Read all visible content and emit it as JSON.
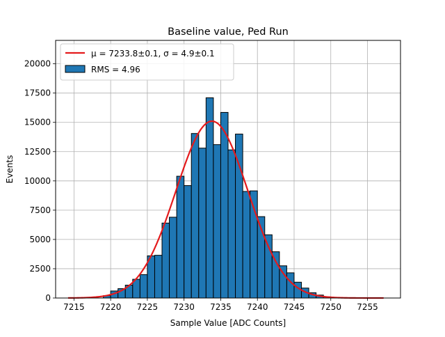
{
  "chart_data": {
    "type": "bar",
    "title": "Baseline value, Ped Run",
    "xlabel": "Sample Value [ADC Counts]",
    "ylabel": "Events",
    "xlim": [
      7212.5,
      7259.5
    ],
    "ylim": [
      0,
      22000
    ],
    "xticks": [
      "7215",
      "7220",
      "7225",
      "7230",
      "7235",
      "7240",
      "7245",
      "7250",
      "7255"
    ],
    "yticks": [
      "0",
      "2500",
      "5000",
      "7500",
      "10000",
      "12500",
      "15000",
      "17500",
      "20000"
    ],
    "grid": true,
    "legend_position": "top-left",
    "bin_width": 1,
    "series": [
      {
        "name": "RMS = 4.96",
        "kind": "histogram",
        "color": "#1f77b4",
        "edge_color": "#000000",
        "bins": [
          {
            "x": 7219.5,
            "value": 200
          },
          {
            "x": 7220.5,
            "value": 600
          },
          {
            "x": 7221.5,
            "value": 800
          },
          {
            "x": 7222.5,
            "value": 1100
          },
          {
            "x": 7223.5,
            "value": 1600
          },
          {
            "x": 7224.5,
            "value": 2000
          },
          {
            "x": 7225.5,
            "value": 3600
          },
          {
            "x": 7226.5,
            "value": 3650
          },
          {
            "x": 7227.5,
            "value": 6400
          },
          {
            "x": 7228.5,
            "value": 6900
          },
          {
            "x": 7229.5,
            "value": 10400
          },
          {
            "x": 7230.5,
            "value": 9600
          },
          {
            "x": 7231.5,
            "value": 14050
          },
          {
            "x": 7232.5,
            "value": 12800
          },
          {
            "x": 7233.5,
            "value": 17100
          },
          {
            "x": 7234.5,
            "value": 13100
          },
          {
            "x": 7235.5,
            "value": 15850
          },
          {
            "x": 7236.5,
            "value": 12650
          },
          {
            "x": 7237.5,
            "value": 14000
          },
          {
            "x": 7238.5,
            "value": 9100
          },
          {
            "x": 7239.5,
            "value": 9150
          },
          {
            "x": 7240.5,
            "value": 6950
          },
          {
            "x": 7241.5,
            "value": 5400
          },
          {
            "x": 7242.5,
            "value": 3950
          },
          {
            "x": 7243.5,
            "value": 2750
          },
          {
            "x": 7244.5,
            "value": 2150
          },
          {
            "x": 7245.5,
            "value": 1350
          },
          {
            "x": 7246.5,
            "value": 850
          },
          {
            "x": 7247.5,
            "value": 450
          },
          {
            "x": 7248.5,
            "value": 250
          },
          {
            "x": 7249.5,
            "value": 100
          }
        ]
      },
      {
        "name": "μ = 7233.8±0.1, σ = 4.9±0.1",
        "kind": "gaussian-fit",
        "color": "#e41a1c",
        "mu": 7233.8,
        "sigma": 4.9,
        "amplitude": 15100,
        "x_range": [
          7214.2,
          7257.2
        ]
      }
    ]
  }
}
